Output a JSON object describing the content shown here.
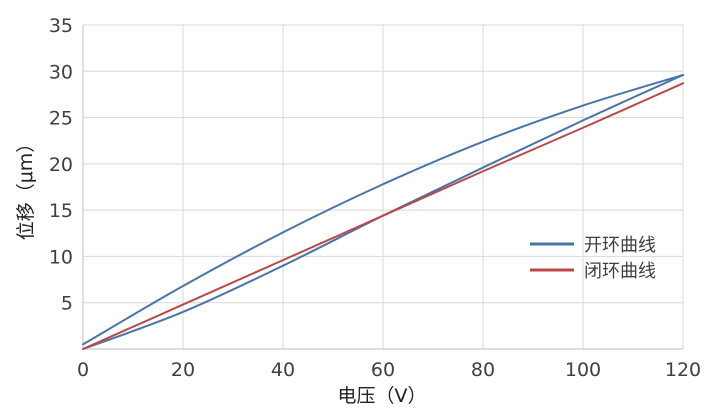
{
  "chart_data": {
    "type": "line",
    "xlabel": "电压（V）",
    "ylabel": "位移（μm）",
    "xlim": [
      0,
      120
    ],
    "ylim": [
      0,
      35
    ],
    "xticks": [
      0,
      20,
      40,
      60,
      80,
      100,
      120
    ],
    "yticks": [
      5,
      10,
      15,
      20,
      25,
      30,
      35
    ],
    "grid": true,
    "legend_position": "right",
    "series": [
      {
        "name": "开环曲线",
        "color": "#4a74a8",
        "segments": [
          {
            "label": "rising",
            "x": [
              0,
              20,
              40,
              60,
              80,
              100,
              120
            ],
            "y": [
              0.5,
              6.8,
              12.6,
              17.8,
              22.4,
              26.3,
              29.6
            ]
          },
          {
            "label": "falling",
            "x": [
              120,
              100,
              80,
              60,
              40,
              20,
              0
            ],
            "y": [
              29.6,
              24.7,
              19.6,
              14.4,
              9.0,
              4.0,
              0.0
            ]
          }
        ]
      },
      {
        "name": "闭环曲线",
        "color": "#b84a4a",
        "segments": [
          {
            "label": "line",
            "x": [
              0,
              20,
              40,
              60,
              80,
              100,
              120
            ],
            "y": [
              0.0,
              4.8,
              9.6,
              14.4,
              19.2,
              23.9,
              28.7
            ]
          }
        ]
      }
    ]
  }
}
